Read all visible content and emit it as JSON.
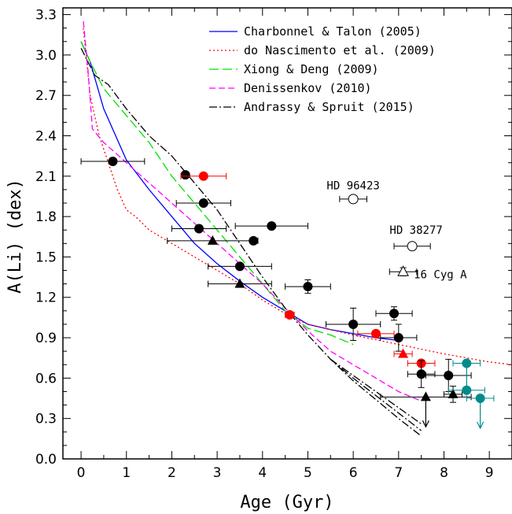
{
  "chart_data": {
    "type": "scatter",
    "title": "",
    "xlabel": "Age (Gyr)",
    "ylabel": "A(Li) (dex)",
    "xlim": [
      -0.4,
      9.5
    ],
    "ylim": [
      0.0,
      3.35
    ],
    "xticks": [
      0,
      1,
      2,
      3,
      4,
      5,
      6,
      7,
      8,
      9
    ],
    "yticks": [
      0.0,
      0.3,
      0.6,
      0.9,
      1.2,
      1.5,
      1.8,
      2.1,
      2.4,
      2.7,
      3.0,
      3.3
    ],
    "grid": false,
    "legend_position": "top-right",
    "series": [
      {
        "name": "Charbonnel & Talon (2005)",
        "color": "#0000ff",
        "dash": "",
        "x": [
          0.0,
          0.2,
          0.5,
          1.0,
          1.5,
          2.0,
          2.5,
          3.0,
          3.5,
          4.0,
          4.5,
          5.0,
          5.5,
          6.0,
          6.5,
          7.0
        ],
        "y": [
          3.1,
          2.95,
          2.6,
          2.22,
          2.0,
          1.8,
          1.6,
          1.45,
          1.32,
          1.2,
          1.1,
          1.0,
          0.96,
          0.93,
          0.9,
          0.88
        ]
      },
      {
        "name": "do Nascimento et al. (2009)",
        "color": "#ff0000",
        "dash": "2,3",
        "x": [
          0.05,
          0.2,
          0.4,
          0.6,
          0.8,
          1.0,
          1.2,
          1.5,
          2.0,
          2.5,
          3.0,
          3.5,
          4.0,
          4.5,
          5.0,
          6.0,
          7.0,
          8.0,
          9.0,
          9.5
        ],
        "y": [
          3.2,
          2.7,
          2.4,
          2.2,
          2.0,
          1.85,
          1.8,
          1.7,
          1.6,
          1.5,
          1.4,
          1.3,
          1.18,
          1.08,
          1.0,
          0.92,
          0.85,
          0.78,
          0.72,
          0.7
        ]
      },
      {
        "name": "Xiong & Deng (2009)",
        "color": "#00e000",
        "dash": "12,5",
        "x": [
          0.0,
          0.2,
          0.5,
          1.0,
          1.5,
          2.0,
          2.5,
          3.0,
          3.5,
          4.0,
          4.5,
          5.0,
          5.5,
          6.0
        ],
        "y": [
          3.1,
          2.95,
          2.75,
          2.55,
          2.35,
          2.1,
          1.9,
          1.7,
          1.5,
          1.3,
          1.1,
          0.97,
          0.92,
          0.85
        ]
      },
      {
        "name": "Denissenkov (2010)",
        "color": "#ff00ff",
        "dash": "8,4",
        "x": [
          0.05,
          0.15,
          0.25,
          0.5,
          1.0,
          1.5,
          2.0,
          2.5,
          3.0,
          3.5,
          4.0,
          4.5,
          5.0,
          5.5,
          6.0,
          6.5,
          7.0,
          7.5
        ],
        "y": [
          3.25,
          2.9,
          2.45,
          2.35,
          2.2,
          2.05,
          1.9,
          1.75,
          1.6,
          1.45,
          1.3,
          1.12,
          0.95,
          0.8,
          0.7,
          0.6,
          0.5,
          0.43
        ]
      },
      {
        "name": "Andrassy & Spruit (2015)",
        "color": "#000000",
        "dash": "10,3,2,3",
        "x": [
          0.0,
          0.3,
          0.6,
          1.0,
          1.5,
          2.0,
          2.5,
          3.0,
          3.5,
          4.0,
          4.5,
          5.0,
          5.5,
          6.0,
          6.5,
          7.0,
          7.5
        ],
        "y": [
          3.05,
          2.85,
          2.78,
          2.6,
          2.4,
          2.25,
          2.05,
          1.85,
          1.6,
          1.35,
          1.12,
          0.92,
          0.74,
          0.58,
          0.44,
          0.3,
          0.17
        ]
      }
    ],
    "extra_curves": [
      {
        "color": "#000000",
        "dash": "10,3,2,3",
        "x": [
          5.5,
          6.0,
          6.5,
          7.0,
          7.5
        ],
        "y": [
          0.74,
          0.62,
          0.5,
          0.38,
          0.26
        ]
      },
      {
        "color": "#000000",
        "dash": "10,3,2,3",
        "x": [
          5.5,
          6.0,
          6.5,
          7.0,
          7.5
        ],
        "y": [
          0.74,
          0.6,
          0.47,
          0.34,
          0.21
        ]
      }
    ],
    "points": [
      {
        "x": 0.7,
        "y": 2.21,
        "xerr": 0.7,
        "yerr": 0,
        "marker": "circle",
        "color": "#000000"
      },
      {
        "x": 2.3,
        "y": 2.11,
        "xerr": 0,
        "yerr": 0,
        "marker": "circle",
        "color": "#000000"
      },
      {
        "x": 2.7,
        "y": 2.1,
        "xerr": 0.5,
        "yerr": 0,
        "marker": "circle",
        "color": "#ff0000"
      },
      {
        "x": 2.7,
        "y": 1.9,
        "xerr": 0.6,
        "yerr": 0,
        "marker": "circle",
        "color": "#000000"
      },
      {
        "x": 2.6,
        "y": 1.71,
        "xerr": 0.6,
        "yerr": 0,
        "marker": "circle",
        "color": "#000000"
      },
      {
        "x": 2.9,
        "y": 1.62,
        "xerr": 1.0,
        "yerr": 0,
        "marker": "triangle",
        "color": "#000000"
      },
      {
        "x": 3.8,
        "y": 1.62,
        "xerr": 0,
        "yerr": 0,
        "marker": "circle",
        "color": "#000000"
      },
      {
        "x": 4.2,
        "y": 1.73,
        "xerr": 0.8,
        "yerr": 0,
        "marker": "circle",
        "color": "#000000"
      },
      {
        "x": 3.5,
        "y": 1.43,
        "xerr": 0.7,
        "yerr": 0,
        "marker": "circle",
        "color": "#000000"
      },
      {
        "x": 3.5,
        "y": 1.3,
        "xerr": 0.7,
        "yerr": 0,
        "marker": "triangle",
        "color": "#000000"
      },
      {
        "x": 5.0,
        "y": 1.28,
        "xerr": 0.5,
        "yerr": 0.05,
        "marker": "circle",
        "color": "#000000"
      },
      {
        "x": 4.6,
        "y": 1.07,
        "xerr": 0.1,
        "yerr": 0,
        "marker": "circle",
        "color": "#ff0000"
      },
      {
        "x": 6.0,
        "y": 1.0,
        "xerr": 0.6,
        "yerr": 0.12,
        "marker": "circle",
        "color": "#000000"
      },
      {
        "x": 6.9,
        "y": 1.08,
        "xerr": 0.4,
        "yerr": 0.05,
        "marker": "circle",
        "color": "#000000"
      },
      {
        "x": 7.0,
        "y": 0.9,
        "xerr": 0.4,
        "yerr": 0.1,
        "marker": "circle",
        "color": "#000000"
      },
      {
        "x": 6.5,
        "y": 0.93,
        "xerr": 0.4,
        "yerr": 0,
        "marker": "circle",
        "color": "#ff0000"
      },
      {
        "x": 7.1,
        "y": 0.78,
        "xerr": 0.2,
        "yerr": 0,
        "marker": "triangle",
        "color": "#ff0000"
      },
      {
        "x": 7.5,
        "y": 0.71,
        "xerr": 0.3,
        "yerr": 0,
        "marker": "circle",
        "color": "#ff0000"
      },
      {
        "x": 7.5,
        "y": 0.63,
        "xerr": 0.3,
        "yerr": 0.1,
        "marker": "circle",
        "color": "#000000"
      },
      {
        "x": 8.1,
        "y": 0.62,
        "xerr": 0.5,
        "yerr": 0.12,
        "marker": "circle",
        "color": "#000000"
      },
      {
        "x": 7.6,
        "y": 0.46,
        "xerr": 1.0,
        "yerr": 0,
        "marker": "triangle",
        "color": "#000000",
        "upper": true
      },
      {
        "x": 8.2,
        "y": 0.48,
        "xerr": 0.2,
        "yerr": 0.06,
        "marker": "triangle",
        "color": "#000000"
      },
      {
        "x": 8.5,
        "y": 0.71,
        "xerr": 0.3,
        "yerr": 0,
        "marker": "circle",
        "color": "#008b8b",
        "upper": true
      },
      {
        "x": 8.5,
        "y": 0.51,
        "xerr": 0.4,
        "yerr": 0,
        "marker": "circle",
        "color": "#008b8b"
      },
      {
        "x": 8.8,
        "y": 0.45,
        "xerr": 0.3,
        "yerr": 0,
        "marker": "circle",
        "color": "#008b8b",
        "upper": true
      },
      {
        "x": 6.0,
        "y": 1.93,
        "xerr": 0.3,
        "yerr": 0,
        "marker": "circle-open",
        "color": "#000000"
      },
      {
        "x": 7.3,
        "y": 1.58,
        "xerr": 0.4,
        "yerr": 0,
        "marker": "circle-open",
        "color": "#000000"
      },
      {
        "x": 7.1,
        "y": 1.39,
        "xerr": 0.3,
        "yerr": 0.03,
        "marker": "triangle-open",
        "color": "#000000"
      }
    ],
    "annotations": [
      {
        "text": "HD 96423",
        "x": 6.0,
        "y": 1.98
      },
      {
        "text": "HD 38277",
        "x": 7.3,
        "y": 1.66
      },
      {
        "text": "16 Cyg A",
        "x": 7.3,
        "y": 1.37
      }
    ]
  }
}
